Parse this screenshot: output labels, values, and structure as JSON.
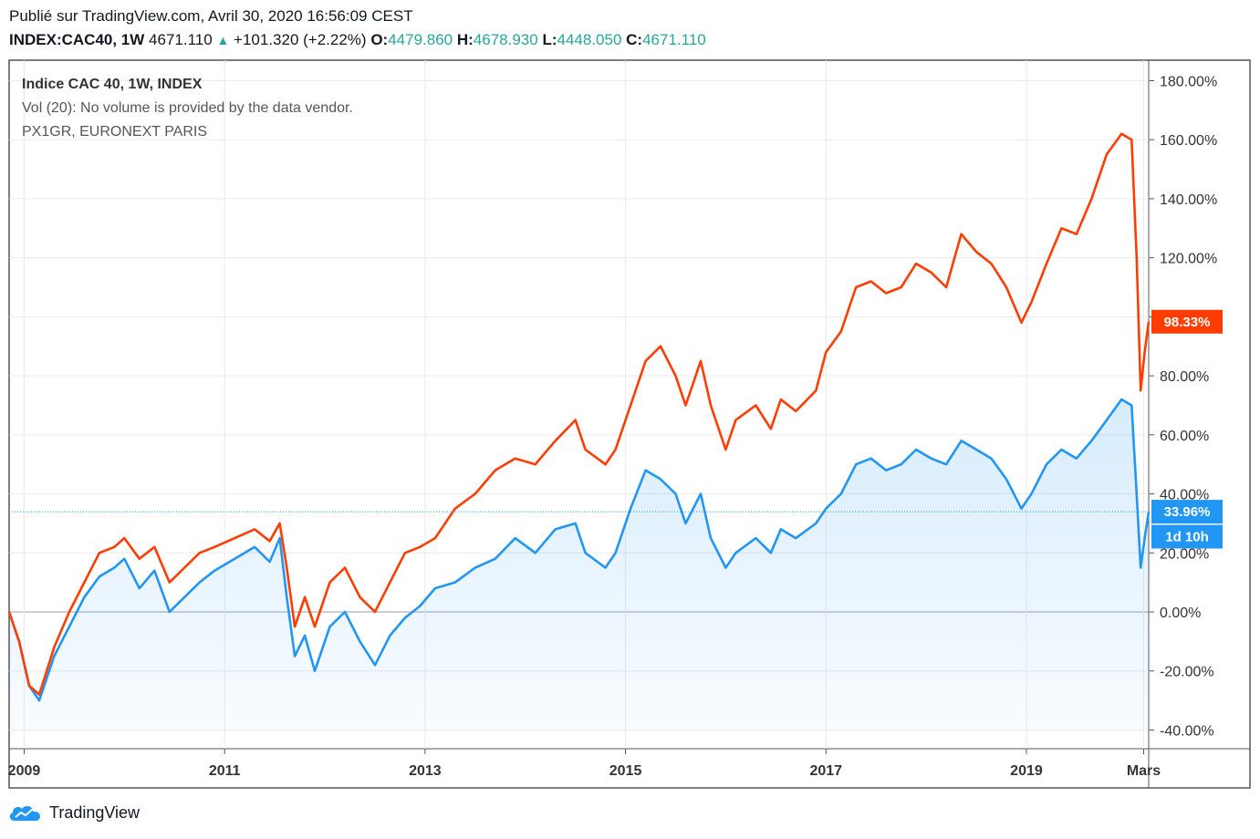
{
  "header": {
    "published": "Publié sur TradingView.com, Avril 30, 2020 16:56:09 CEST",
    "symbol": "INDEX:CAC40, 1W",
    "last": "4671.110",
    "change": "+101.320 (+2.22%)",
    "open_label": "O:",
    "open": "4479.860",
    "high_label": "H:",
    "high": "4678.930",
    "low_label": "L:",
    "low": "4448.050",
    "close_label": "C:",
    "close": "4671.110"
  },
  "legend": {
    "line1": "Indice CAC 40, 1W, INDEX",
    "line2": "Vol (20): No volume is provided by the data vendor.",
    "line3": "PX1GR, EURONEXT PARIS"
  },
  "brand": {
    "name": "TradingView"
  },
  "colors": {
    "cac40": "#2196f3",
    "px1gr": "#ff3d00",
    "grid": "#e8eaed",
    "text": "#333333"
  },
  "chart_data": {
    "type": "line",
    "xlim": [
      2008.85,
      2020.22
    ],
    "ylim": [
      -40,
      180
    ],
    "y_ticks": [
      "180.00%",
      "160.00%",
      "140.00%",
      "120.00%",
      "100.00%",
      "80.00%",
      "60.00%",
      "40.00%",
      "20.00%",
      "0.00%",
      "-20.00%",
      "-40.00%"
    ],
    "y_tick_values": [
      180,
      160,
      140,
      120,
      100,
      80,
      60,
      40,
      20,
      0,
      -20,
      -40
    ],
    "x_ticks": [
      {
        "label": "2009",
        "x": 2009.0
      },
      {
        "label": "2011",
        "x": 2011.0
      },
      {
        "label": "2013",
        "x": 2013.0
      },
      {
        "label": "2015",
        "x": 2015.0
      },
      {
        "label": "2017",
        "x": 2017.0
      },
      {
        "label": "2019",
        "x": 2019.0
      },
      {
        "label": "Mars",
        "x": 2020.17
      }
    ],
    "series": [
      {
        "key": "cac40",
        "values": [
          [
            2008.85,
            0
          ],
          [
            2008.95,
            -10
          ],
          [
            2009.05,
            -25
          ],
          [
            2009.15,
            -30
          ],
          [
            2009.3,
            -15
          ],
          [
            2009.45,
            -5
          ],
          [
            2009.6,
            5
          ],
          [
            2009.75,
            12
          ],
          [
            2009.9,
            15
          ],
          [
            2010.0,
            18
          ],
          [
            2010.15,
            8
          ],
          [
            2010.3,
            14
          ],
          [
            2010.45,
            0
          ],
          [
            2010.6,
            5
          ],
          [
            2010.75,
            10
          ],
          [
            2010.9,
            14
          ],
          [
            2011.1,
            18
          ],
          [
            2011.3,
            22
          ],
          [
            2011.45,
            17
          ],
          [
            2011.55,
            25
          ],
          [
            2011.62,
            5
          ],
          [
            2011.7,
            -15
          ],
          [
            2011.8,
            -8
          ],
          [
            2011.9,
            -20
          ],
          [
            2012.05,
            -5
          ],
          [
            2012.2,
            0
          ],
          [
            2012.35,
            -10
          ],
          [
            2012.5,
            -18
          ],
          [
            2012.65,
            -8
          ],
          [
            2012.8,
            -2
          ],
          [
            2012.95,
            2
          ],
          [
            2013.1,
            8
          ],
          [
            2013.3,
            10
          ],
          [
            2013.5,
            15
          ],
          [
            2013.7,
            18
          ],
          [
            2013.9,
            25
          ],
          [
            2014.1,
            20
          ],
          [
            2014.3,
            28
          ],
          [
            2014.5,
            30
          ],
          [
            2014.6,
            20
          ],
          [
            2014.8,
            15
          ],
          [
            2014.9,
            20
          ],
          [
            2015.05,
            35
          ],
          [
            2015.2,
            48
          ],
          [
            2015.35,
            45
          ],
          [
            2015.5,
            40
          ],
          [
            2015.6,
            30
          ],
          [
            2015.75,
            40
          ],
          [
            2015.85,
            25
          ],
          [
            2016.0,
            15
          ],
          [
            2016.1,
            20
          ],
          [
            2016.3,
            25
          ],
          [
            2016.45,
            20
          ],
          [
            2016.55,
            28
          ],
          [
            2016.7,
            25
          ],
          [
            2016.9,
            30
          ],
          [
            2017.0,
            35
          ],
          [
            2017.15,
            40
          ],
          [
            2017.3,
            50
          ],
          [
            2017.45,
            52
          ],
          [
            2017.6,
            48
          ],
          [
            2017.75,
            50
          ],
          [
            2017.9,
            55
          ],
          [
            2018.05,
            52
          ],
          [
            2018.2,
            50
          ],
          [
            2018.35,
            58
          ],
          [
            2018.5,
            55
          ],
          [
            2018.65,
            52
          ],
          [
            2018.8,
            45
          ],
          [
            2018.95,
            35
          ],
          [
            2019.05,
            40
          ],
          [
            2019.2,
            50
          ],
          [
            2019.35,
            55
          ],
          [
            2019.5,
            52
          ],
          [
            2019.65,
            58
          ],
          [
            2019.8,
            65
          ],
          [
            2019.95,
            72
          ],
          [
            2020.05,
            70
          ],
          [
            2020.1,
            40
          ],
          [
            2020.14,
            15
          ],
          [
            2020.18,
            25
          ],
          [
            2020.22,
            33.96
          ]
        ]
      },
      {
        "key": "px1gr",
        "values": [
          [
            2008.85,
            0
          ],
          [
            2008.95,
            -10
          ],
          [
            2009.05,
            -25
          ],
          [
            2009.15,
            -28
          ],
          [
            2009.3,
            -12
          ],
          [
            2009.45,
            0
          ],
          [
            2009.6,
            10
          ],
          [
            2009.75,
            20
          ],
          [
            2009.9,
            22
          ],
          [
            2010.0,
            25
          ],
          [
            2010.15,
            18
          ],
          [
            2010.3,
            22
          ],
          [
            2010.45,
            10
          ],
          [
            2010.6,
            15
          ],
          [
            2010.75,
            20
          ],
          [
            2010.9,
            22
          ],
          [
            2011.1,
            25
          ],
          [
            2011.3,
            28
          ],
          [
            2011.45,
            24
          ],
          [
            2011.55,
            30
          ],
          [
            2011.62,
            15
          ],
          [
            2011.7,
            -5
          ],
          [
            2011.8,
            5
          ],
          [
            2011.9,
            -5
          ],
          [
            2012.05,
            10
          ],
          [
            2012.2,
            15
          ],
          [
            2012.35,
            5
          ],
          [
            2012.5,
            0
          ],
          [
            2012.65,
            10
          ],
          [
            2012.8,
            20
          ],
          [
            2012.95,
            22
          ],
          [
            2013.1,
            25
          ],
          [
            2013.3,
            35
          ],
          [
            2013.5,
            40
          ],
          [
            2013.7,
            48
          ],
          [
            2013.9,
            52
          ],
          [
            2014.1,
            50
          ],
          [
            2014.3,
            58
          ],
          [
            2014.5,
            65
          ],
          [
            2014.6,
            55
          ],
          [
            2014.8,
            50
          ],
          [
            2014.9,
            55
          ],
          [
            2015.05,
            70
          ],
          [
            2015.2,
            85
          ],
          [
            2015.35,
            90
          ],
          [
            2015.5,
            80
          ],
          [
            2015.6,
            70
          ],
          [
            2015.75,
            85
          ],
          [
            2015.85,
            70
          ],
          [
            2016.0,
            55
          ],
          [
            2016.1,
            65
          ],
          [
            2016.3,
            70
          ],
          [
            2016.45,
            62
          ],
          [
            2016.55,
            72
          ],
          [
            2016.7,
            68
          ],
          [
            2016.9,
            75
          ],
          [
            2017.0,
            88
          ],
          [
            2017.15,
            95
          ],
          [
            2017.3,
            110
          ],
          [
            2017.45,
            112
          ],
          [
            2017.6,
            108
          ],
          [
            2017.75,
            110
          ],
          [
            2017.9,
            118
          ],
          [
            2018.05,
            115
          ],
          [
            2018.2,
            110
          ],
          [
            2018.35,
            128
          ],
          [
            2018.5,
            122
          ],
          [
            2018.65,
            118
          ],
          [
            2018.8,
            110
          ],
          [
            2018.95,
            98
          ],
          [
            2019.05,
            105
          ],
          [
            2019.2,
            118
          ],
          [
            2019.35,
            130
          ],
          [
            2019.5,
            128
          ],
          [
            2019.65,
            140
          ],
          [
            2019.8,
            155
          ],
          [
            2019.95,
            162
          ],
          [
            2020.05,
            160
          ],
          [
            2020.1,
            120
          ],
          [
            2020.14,
            75
          ],
          [
            2020.18,
            88
          ],
          [
            2020.22,
            98.33
          ]
        ]
      }
    ],
    "price_labels": [
      {
        "series": "px1gr",
        "text": "98.33%",
        "y": 98.33
      },
      {
        "series": "cac40",
        "text": "33.96%",
        "y": 33.96
      },
      {
        "series": "cac40",
        "text": "1d 10h",
        "y": 25.5
      }
    ],
    "grid": true
  }
}
